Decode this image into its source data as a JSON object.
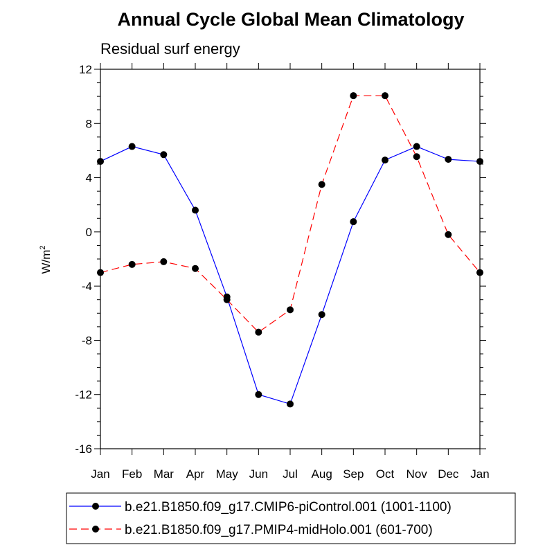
{
  "chart_data": {
    "type": "line",
    "title": "Annual Cycle Global Mean Climatology",
    "subtitle": "Residual surf energy",
    "ylabel_base": "W/m",
    "ylabel_sup": "2",
    "categories": [
      "Jan",
      "Feb",
      "Mar",
      "Apr",
      "May",
      "Jun",
      "Jul",
      "Aug",
      "Sep",
      "Oct",
      "Nov",
      "Dec",
      "Jan"
    ],
    "yticks": [
      12,
      8,
      4,
      0,
      -4,
      -8,
      -12,
      -16
    ],
    "ylim": [
      -16,
      12
    ],
    "grid": false,
    "legend_position": "bottom",
    "series": [
      {
        "name": "b.e21.B1850.f09_g17.CMIP6-piControl.001 (1001-1100)",
        "color": "#0000ff",
        "dash": "solid",
        "values": [
          5.2,
          6.3,
          5.7,
          1.6,
          -4.8,
          -12.0,
          -12.7,
          -6.1,
          0.75,
          5.3,
          6.3,
          5.35,
          5.2
        ]
      },
      {
        "name": "b.e21.B1850.f09_g17.PMIP4-midHolo.001 (601-700)",
        "color": "#ff0000",
        "dash": "dashed",
        "values": [
          -3.0,
          -2.4,
          -2.2,
          -2.7,
          -5.0,
          -7.4,
          -5.75,
          3.5,
          10.05,
          10.05,
          5.55,
          -0.2,
          -3.0
        ]
      }
    ]
  }
}
